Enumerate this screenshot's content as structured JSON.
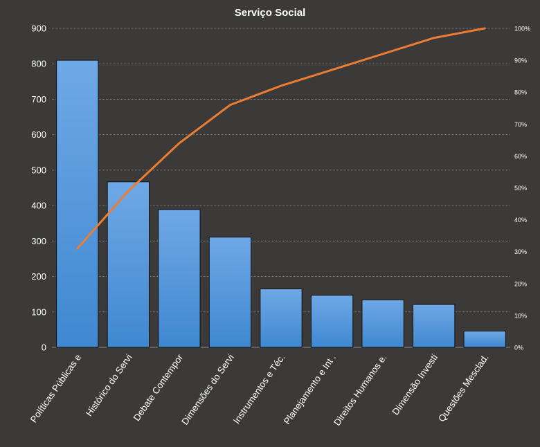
{
  "chart_data": {
    "type": "bar",
    "title": "Serviço Social",
    "xlabel": "",
    "ylabel": "",
    "categories": [
      "Políticas Públicas e",
      "Histórico do Servi",
      "Debate Contempor",
      "Dimensões do Servi",
      "Instrumentos  e Téc.",
      "Planejamento e Int .",
      "Direitos Humanos e.",
      "Dimensão Investi",
      "Questões Mesclad."
    ],
    "series": [
      {
        "type": "bar",
        "values": [
          810,
          467,
          389,
          311,
          165,
          147,
          134,
          121,
          46
        ]
      },
      {
        "type": "line",
        "axis": "right",
        "values": [
          31,
          49,
          64,
          76,
          82,
          87,
          92,
          97,
          100
        ]
      }
    ],
    "ylim": [
      0,
      900
    ],
    "yticks": [
      0,
      100,
      200,
      300,
      400,
      500,
      600,
      700,
      800,
      900
    ],
    "y2lim": [
      0,
      100
    ],
    "y2ticks": [
      "0%",
      "10%",
      "20%",
      "30%",
      "40%",
      "50%",
      "60%",
      "70%",
      "80%",
      "90%",
      "100%"
    ],
    "grid": true,
    "legend": "none",
    "colors": {
      "background": "#3b3a39",
      "bar_top": "#6fa8e6",
      "bar_bottom": "#3f88d0",
      "bar_border": "#111111",
      "line": "#ed7d31",
      "grid": "#8a8a8a",
      "text": "#ffffff"
    }
  }
}
